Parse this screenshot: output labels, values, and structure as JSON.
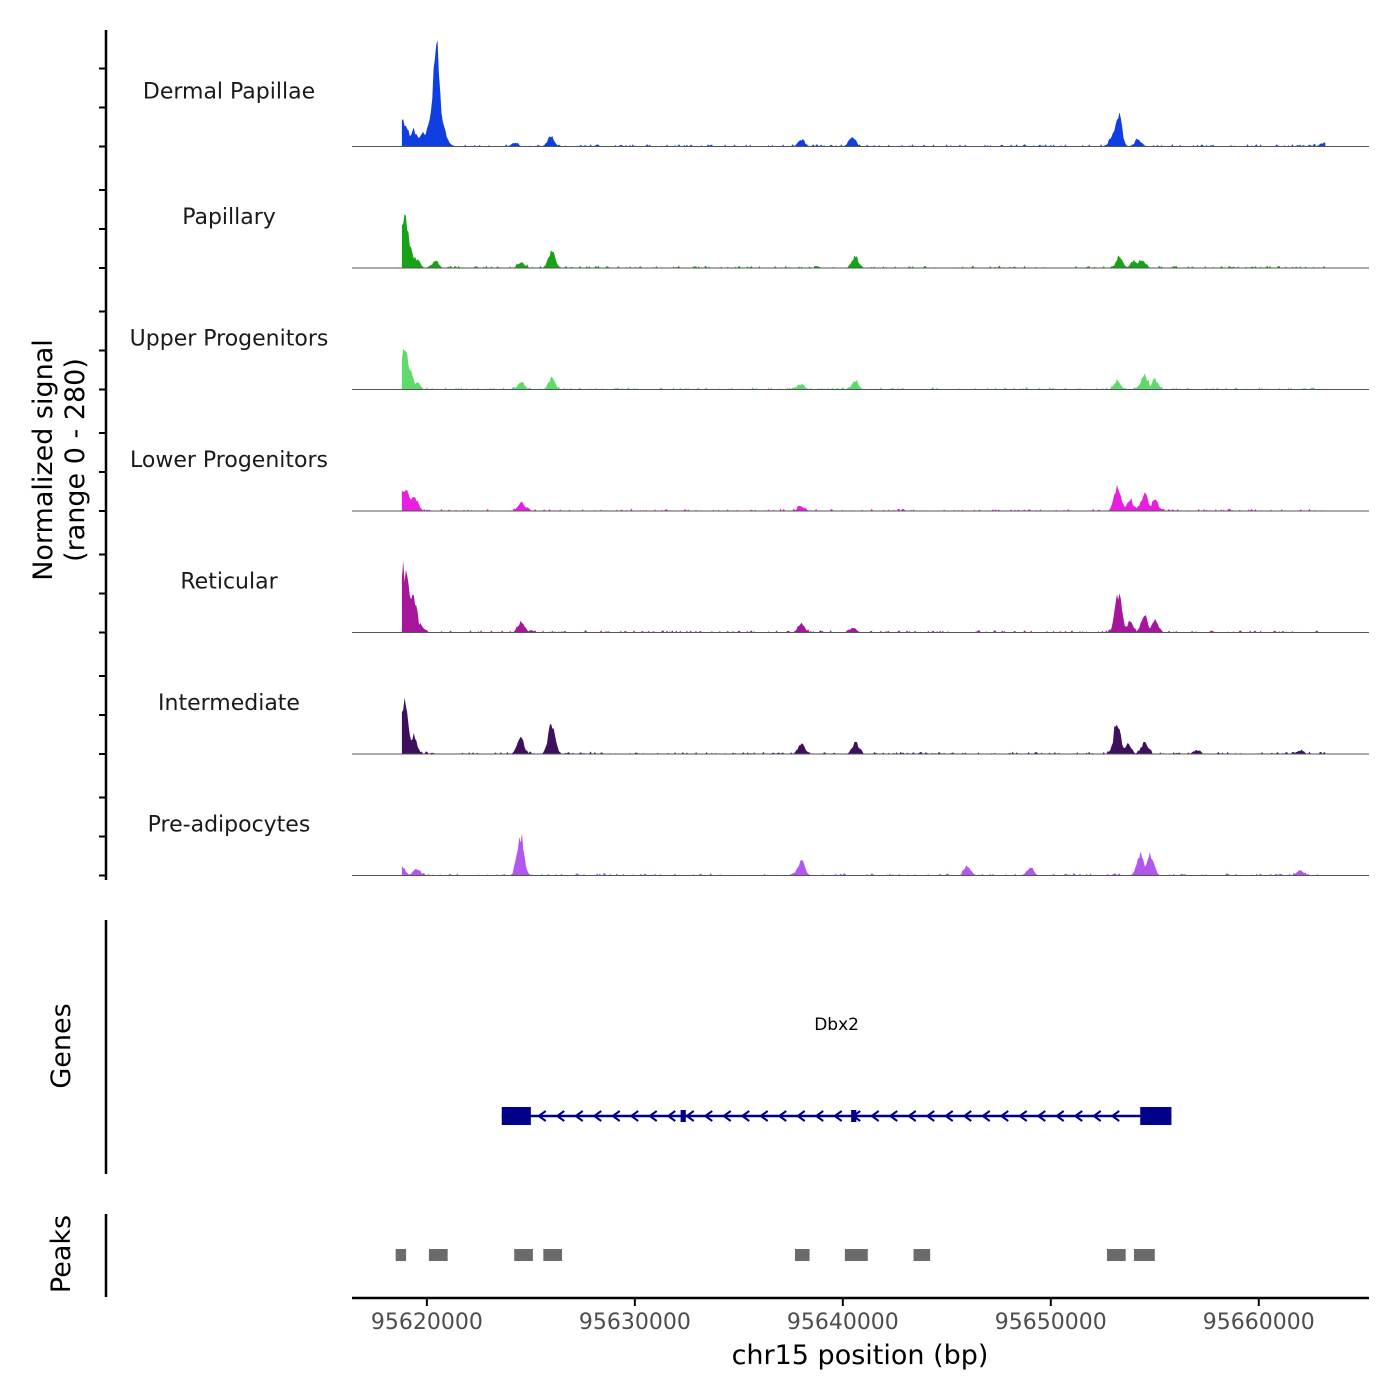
{
  "chart_data": {
    "type": "area",
    "title": "",
    "ylabel": "Normalized signal",
    "ylabel_range": "(range 0 - 280)",
    "ylim": [
      0,
      280
    ],
    "xlabel": "chr15 position (bp)",
    "xlim": [
      95616400,
      95665300
    ],
    "x_ticks": [
      95620000,
      95630000,
      95640000,
      95650000,
      95660000
    ],
    "x_tick_labels": [
      "95620000",
      "95630000",
      "95640000",
      "95650000",
      "95660000"
    ],
    "series": [
      {
        "name": "Dermal Papillae",
        "color": "#0f3fe0",
        "bins": [
          [
            95618850,
            75
          ],
          [
            95619000,
            55
          ],
          [
            95619150,
            20
          ],
          [
            95619350,
            45
          ],
          [
            95619600,
            25
          ],
          [
            95619850,
            40
          ],
          [
            95620100,
            60
          ],
          [
            95620300,
            120
          ],
          [
            95620450,
            280
          ],
          [
            95620600,
            100
          ],
          [
            95620800,
            50
          ],
          [
            95621000,
            12
          ],
          [
            95624200,
            8
          ],
          [
            95625950,
            25
          ],
          [
            95638000,
            18
          ],
          [
            95640450,
            22
          ],
          [
            95653050,
            40
          ],
          [
            95653250,
            85
          ],
          [
            95654200,
            18
          ],
          [
            95663100,
            10
          ]
        ]
      },
      {
        "name": "Papillary",
        "color": "#17a317",
        "bins": [
          [
            95618800,
            80
          ],
          [
            95618950,
            150
          ],
          [
            95619150,
            60
          ],
          [
            95619500,
            25
          ],
          [
            95620400,
            18
          ],
          [
            95624550,
            15
          ],
          [
            95626000,
            45
          ],
          [
            95640600,
            30
          ],
          [
            95653300,
            28
          ],
          [
            95654000,
            20
          ],
          [
            95654400,
            22
          ]
        ]
      },
      {
        "name": "Upper Progenitors",
        "color": "#5ddb6a",
        "bins": [
          [
            95618800,
            60
          ],
          [
            95618950,
            110
          ],
          [
            95619200,
            45
          ],
          [
            95619500,
            20
          ],
          [
            95624550,
            20
          ],
          [
            95626000,
            28
          ],
          [
            95638000,
            15
          ],
          [
            95640600,
            22
          ],
          [
            95653200,
            22
          ],
          [
            95654500,
            40
          ],
          [
            95655000,
            25
          ]
        ]
      },
      {
        "name": "Lower Progenitors",
        "color": "#e81ee0",
        "bins": [
          [
            95618800,
            65
          ],
          [
            95619000,
            55
          ],
          [
            95619400,
            40
          ],
          [
            95624550,
            25
          ],
          [
            95638000,
            12
          ],
          [
            95653200,
            65
          ],
          [
            95653800,
            30
          ],
          [
            95654500,
            45
          ],
          [
            95655000,
            30
          ]
        ]
      },
      {
        "name": "Reticular",
        "color": "#a6169a",
        "bins": [
          [
            95618800,
            180
          ],
          [
            95619000,
            160
          ],
          [
            95619350,
            105
          ],
          [
            95619700,
            20
          ],
          [
            95624550,
            25
          ],
          [
            95638000,
            25
          ],
          [
            95640500,
            12
          ],
          [
            95653250,
            105
          ],
          [
            95653800,
            25
          ],
          [
            95654500,
            45
          ],
          [
            95655000,
            30
          ]
        ]
      },
      {
        "name": "Intermediate",
        "color": "#3d0f5c",
        "bins": [
          [
            95618800,
            120
          ],
          [
            95618950,
            145
          ],
          [
            95619350,
            50
          ],
          [
            95624500,
            45
          ],
          [
            95626000,
            80
          ],
          [
            95638000,
            28
          ],
          [
            95640600,
            30
          ],
          [
            95653200,
            90
          ],
          [
            95653700,
            25
          ],
          [
            95654500,
            30
          ],
          [
            95657000,
            10
          ],
          [
            95662000,
            8
          ]
        ]
      },
      {
        "name": "Pre-adipocytes",
        "color": "#b256ee",
        "bins": [
          [
            95618800,
            25
          ],
          [
            95619500,
            18
          ],
          [
            95624500,
            110
          ],
          [
            95638000,
            40
          ],
          [
            95646000,
            25
          ],
          [
            95649000,
            20
          ],
          [
            95654300,
            60
          ],
          [
            95654800,
            55
          ],
          [
            95662000,
            15
          ]
        ]
      }
    ],
    "genes": [
      {
        "name": "Dbx2",
        "strand": "-",
        "start": 95623600,
        "end": 95655800,
        "exons": [
          [
            95623600,
            95625000
          ],
          [
            95632200,
            95632450
          ],
          [
            95640400,
            95640650
          ],
          [
            95654300,
            95655800
          ]
        ]
      }
    ],
    "peaks": [
      [
        95618500,
        95619000
      ],
      [
        95620100,
        95621000
      ],
      [
        95624200,
        95625100
      ],
      [
        95625600,
        95626500
      ],
      [
        95637700,
        95638400
      ],
      [
        95640100,
        95641200
      ],
      [
        95643400,
        95644200
      ],
      [
        95652700,
        95653600
      ],
      [
        95654000,
        95655000
      ]
    ],
    "panel_labels": {
      "genes": "Genes",
      "peaks": "Peaks"
    }
  }
}
